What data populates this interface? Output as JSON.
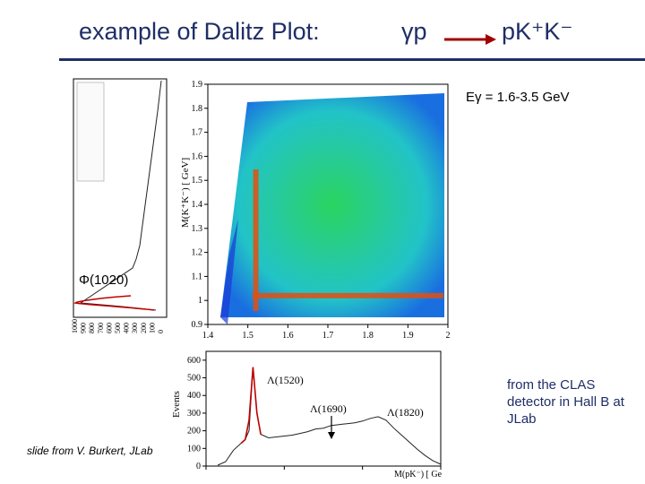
{
  "slide": {
    "title": "example of Dalitz Plot:",
    "reaction_initial": "γp",
    "reaction_final": "pK⁺K⁻",
    "energy_range": "Eγ = 1.6-3.5 GeV",
    "phi_label": "Φ(1020)",
    "credit": "slide from V. Burkert, JLab",
    "source_note": "from the CLAS detector in Hall B at JLab"
  },
  "chart_data": [
    {
      "type": "heatmap",
      "title": "",
      "xlabel": "",
      "ylabel": "M(K⁺K⁻) [ GeV]",
      "xlim": [
        1.4,
        2.0
      ],
      "ylim": [
        0.9,
        1.9
      ],
      "x_ticks": [
        "1.4",
        "1.5",
        "1.6",
        "1.7",
        "1.8",
        "1.9",
        "2"
      ],
      "y_ticks": [
        "0.9",
        "1",
        "1.1",
        "1.2",
        "1.3",
        "1.4",
        "1.5",
        "1.6",
        "1.7",
        "1.8",
        "1.9"
      ],
      "bands": [
        {
          "axis": "y",
          "value": 1.02,
          "name": "Φ(1020)"
        },
        {
          "axis": "x",
          "value": 1.52,
          "name": "Λ(1520)"
        }
      ]
    },
    {
      "type": "line",
      "title": "",
      "xlabel": "M(pK⁻) [ Ge",
      "ylabel": "Events",
      "xlim": [
        1.4,
        2.0
      ],
      "ylim": [
        0,
        650
      ],
      "x_ticks": [
        "1.4",
        "1.6",
        "1.8",
        "2"
      ],
      "y_ticks": [
        "0",
        "100",
        "200",
        "300",
        "400",
        "500",
        "600"
      ],
      "x": [
        1.43,
        1.45,
        1.47,
        1.49,
        1.5,
        1.51,
        1.52,
        1.53,
        1.54,
        1.56,
        1.58,
        1.6,
        1.62,
        1.64,
        1.66,
        1.68,
        1.7,
        1.72,
        1.74,
        1.76,
        1.78,
        1.8,
        1.82,
        1.84,
        1.86,
        1.88,
        1.9,
        1.92,
        1.94,
        1.96,
        1.98,
        2.0
      ],
      "values": [
        5,
        25,
        90,
        130,
        150,
        200,
        560,
        300,
        180,
        160,
        165,
        170,
        175,
        185,
        195,
        210,
        215,
        230,
        235,
        240,
        245,
        255,
        270,
        280,
        260,
        215,
        175,
        135,
        95,
        60,
        30,
        10
      ],
      "annotations": [
        "Λ(1520)",
        "Λ(1690)",
        "Λ(1820)"
      ]
    },
    {
      "type": "line",
      "title": "",
      "ylabel": "",
      "xlabel": "",
      "y_label_rotated": "M(K⁺K⁻) [ GeV]",
      "x_ticks": [
        "0",
        "100",
        "200",
        "300",
        "400",
        "500",
        "600",
        "700",
        "800",
        "900",
        "1000"
      ],
      "peak_at": 1.02
    }
  ]
}
